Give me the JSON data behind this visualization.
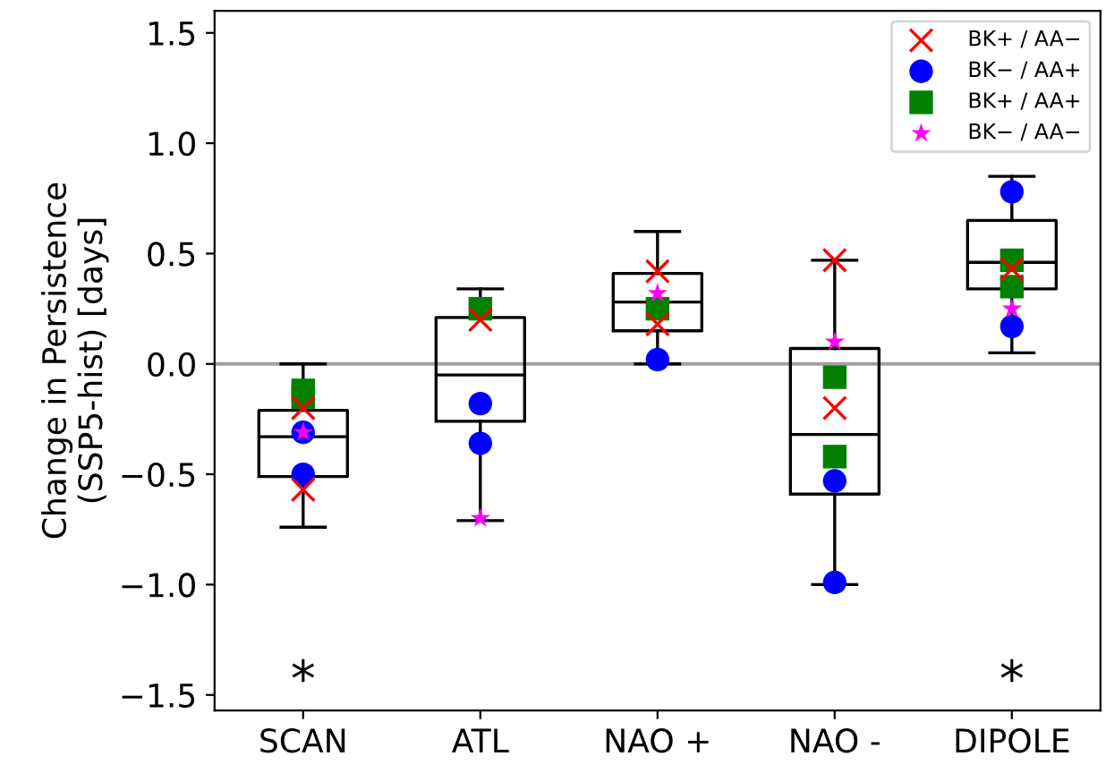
{
  "chart_data": {
    "type": "box",
    "ylabel": "Change in Persistence\n(SSP5-hist) [days]",
    "categories": [
      "SCAN",
      "ATL",
      "NAO +",
      "NAO -",
      "DIPOLE"
    ],
    "boxes": [
      {
        "low": -0.74,
        "q1": -0.51,
        "median": -0.33,
        "q3": -0.21,
        "high": 0.0
      },
      {
        "low": -0.71,
        "q1": -0.26,
        "median": -0.05,
        "q3": 0.21,
        "high": 0.34
      },
      {
        "low": 0.0,
        "q1": 0.15,
        "median": 0.28,
        "q3": 0.41,
        "high": 0.6
      },
      {
        "low": -1.0,
        "q1": -0.59,
        "median": -0.32,
        "q3": 0.07,
        "high": 0.47
      },
      {
        "low": 0.05,
        "q1": 0.34,
        "median": 0.46,
        "q3": 0.65,
        "high": 0.85
      }
    ],
    "series": [
      {
        "name": "BK+ / AA−",
        "type": "scatter",
        "marker": "cross",
        "color": "#ff0000",
        "x": [
          "SCAN",
          "SCAN",
          "ATL",
          "NAO +",
          "NAO +",
          "NAO -",
          "NAO -",
          "DIPOLE"
        ],
        "values": [
          -0.2,
          -0.57,
          0.2,
          0.42,
          0.18,
          0.47,
          -0.2,
          0.43
        ]
      },
      {
        "name": "BK− / AA+",
        "type": "scatter",
        "marker": "circle",
        "color": "#0000ff",
        "x": [
          "SCAN",
          "SCAN",
          "ATL",
          "ATL",
          "NAO +",
          "NAO -",
          "NAO -",
          "DIPOLE",
          "DIPOLE"
        ],
        "values": [
          -0.31,
          -0.5,
          -0.18,
          -0.36,
          0.02,
          -0.53,
          -0.99,
          0.78,
          0.17
        ]
      },
      {
        "name": "BK+ / AA+",
        "type": "scatter",
        "marker": "square",
        "color": "#008000",
        "x": [
          "SCAN",
          "SCAN",
          "ATL",
          "NAO +",
          "NAO -",
          "NAO -",
          "DIPOLE",
          "DIPOLE"
        ],
        "values": [
          -0.12,
          -0.15,
          0.25,
          0.25,
          -0.06,
          -0.42,
          0.47,
          0.35
        ]
      },
      {
        "name": "BK− / AA−",
        "type": "scatter",
        "marker": "star",
        "color": "#ff00ff",
        "x": [
          "SCAN",
          "ATL",
          "NAO +",
          "NAO -",
          "DIPOLE"
        ],
        "values": [
          -0.31,
          -0.7,
          0.32,
          0.1,
          0.25
        ]
      }
    ],
    "annotations": [
      "*",
      "*"
    ],
    "ref_lines": [
      {
        "axis": "y",
        "value": 0,
        "color": "#a0a0a0"
      }
    ],
    "ylim": [
      -1.57,
      1.6
    ],
    "yticks": [
      {
        "value": -1.5,
        "label": "−1.5"
      },
      {
        "value": -1.0,
        "label": "−1.0"
      },
      {
        "value": -0.5,
        "label": "−0.5"
      },
      {
        "value": 0,
        "label": "0.0"
      },
      {
        "value": 0.5,
        "label": "0.5"
      },
      {
        "value": 1,
        "label": "1.0"
      },
      {
        "value": 1.5,
        "label": "1.5"
      }
    ],
    "legend": "top right",
    "grid": false
  }
}
